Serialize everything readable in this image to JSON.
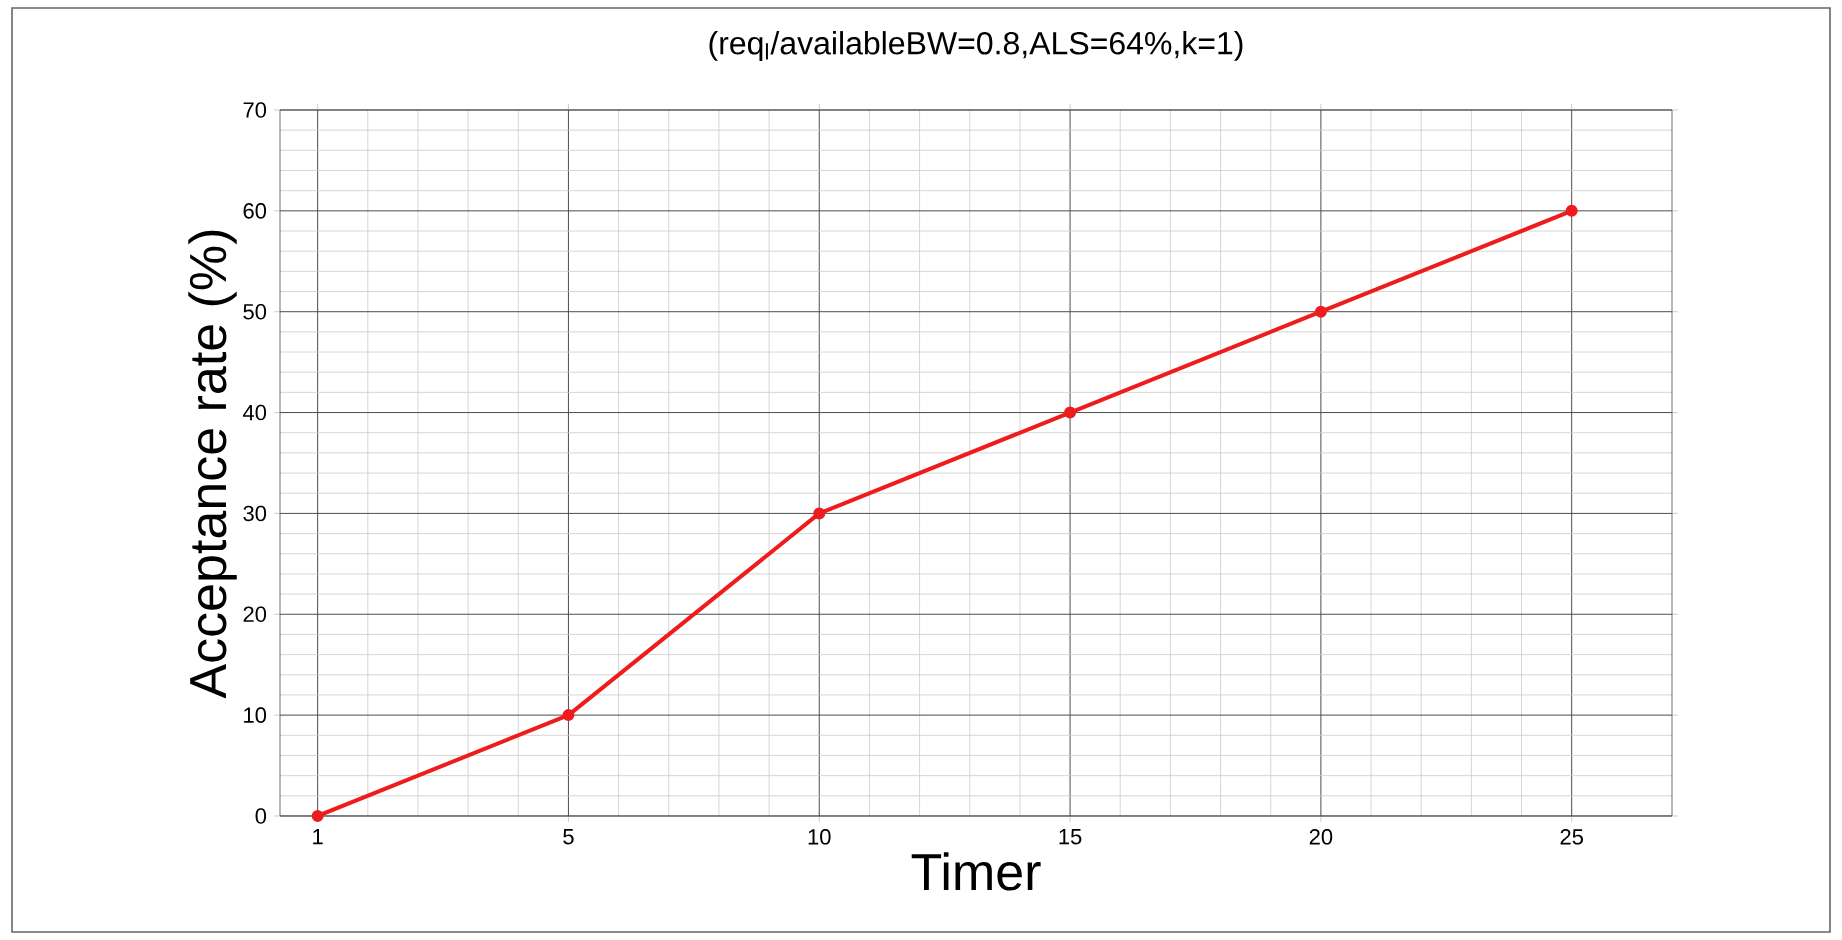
{
  "chart_data": {
    "type": "line",
    "title": "(req$_{l}$/availableBW=0.8,ALS=64%,k=1)",
    "xlabel": "Timer",
    "ylabel": "Acceptance rate (%)",
    "categories": [
      "1",
      "5",
      "10",
      "15",
      "20",
      "25"
    ],
    "series": [
      {
        "color": "#ee1c1c",
        "values": [
          0,
          10,
          30,
          40,
          50,
          60
        ]
      }
    ],
    "ylim": [
      0,
      70
    ],
    "yticks": [
      0,
      10,
      20,
      30,
      40,
      50,
      60,
      70
    ],
    "grid": true,
    "marker": "circle",
    "line_style": "solid"
  }
}
